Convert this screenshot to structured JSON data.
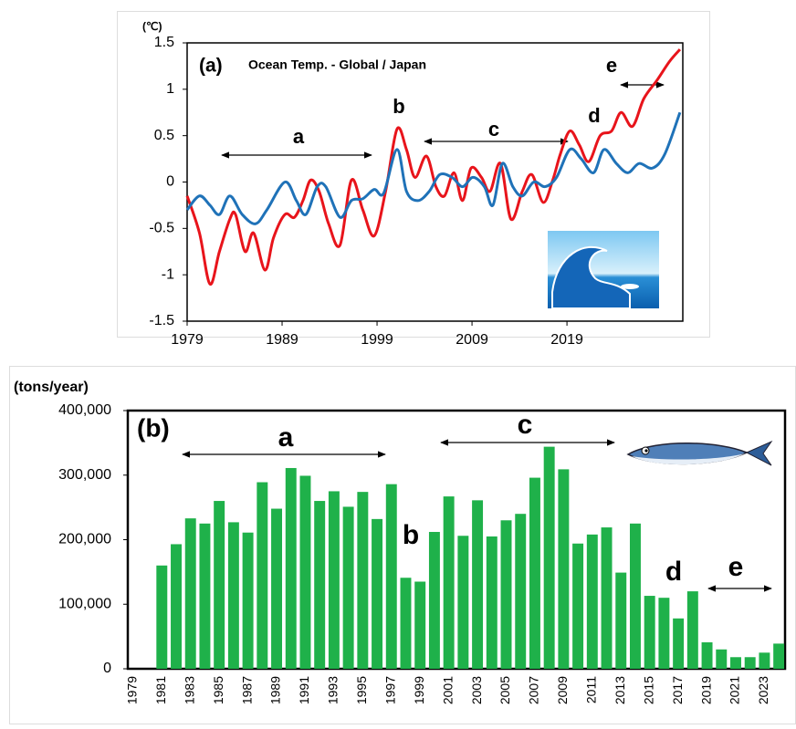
{
  "chart_data": [
    {
      "type": "line",
      "label": "(a)",
      "title": "Ocean Temp. - Global / Japan",
      "ylabel": "(℃)",
      "xlim": [
        1979,
        2031.2
      ],
      "xticks": [
        1979,
        1989,
        1999,
        2009,
        2019
      ],
      "ylim": [
        -1.5,
        1.5
      ],
      "yticks": [
        1.5,
        1,
        0.5,
        0,
        -0.5,
        -1,
        -1.5
      ],
      "annotations": [
        "a",
        "b",
        "c",
        "d",
        "e"
      ],
      "series": [
        {
          "color": "#e8141b",
          "x": [
            1979.0,
            1980.3,
            1981.4,
            1982.4,
            1983.5,
            1984.1,
            1985.1,
            1986.0,
            1987.2,
            1988.1,
            1989.3,
            1990.3,
            1991.2,
            1992.0,
            1992.9,
            1993.9,
            1995.1,
            1996.3,
            1997.5,
            1998.7,
            1999.9,
            2001.1,
            2002.1,
            2003.0,
            2004.2,
            2005.2,
            2006.1,
            2007.1,
            2008.0,
            2008.9,
            2010.0,
            2010.9,
            2012.0,
            2013.1,
            2014.3,
            2015.3,
            2016.5,
            2017.5,
            2018.3,
            2019.3,
            2020.3,
            2021.3,
            2022.5,
            2023.7,
            2024.7,
            2025.9,
            2027.1,
            2028.5,
            2029.8,
            2030.9
          ],
          "values": [
            -0.15,
            -0.55,
            -1.1,
            -0.75,
            -0.4,
            -0.35,
            -0.75,
            -0.55,
            -0.95,
            -0.6,
            -0.35,
            -0.38,
            -0.2,
            0.02,
            -0.1,
            -0.45,
            -0.68,
            0.02,
            -0.3,
            -0.58,
            -0.1,
            0.57,
            0.35,
            0.05,
            0.28,
            -0.05,
            -0.15,
            0.1,
            -0.2,
            0.15,
            0.05,
            -0.1,
            0.2,
            -0.4,
            -0.1,
            0.08,
            -0.22,
            0.02,
            0.3,
            0.55,
            0.4,
            0.22,
            0.5,
            0.55,
            0.75,
            0.6,
            0.9,
            1.1,
            1.3,
            1.43
          ]
        },
        {
          "color": "#1f72b8",
          "x": [
            1979.0,
            1980.3,
            1981.4,
            1982.4,
            1983.5,
            1984.8,
            1986.2,
            1987.4,
            1989.3,
            1990.5,
            1991.5,
            1992.7,
            1993.6,
            1995.1,
            1996.3,
            1997.5,
            1998.7,
            1999.7,
            2001.1,
            2002.1,
            2003.3,
            2004.5,
            2005.6,
            2006.9,
            2008.0,
            2009.1,
            2010.3,
            2011.2,
            2012.2,
            2013.3,
            2014.3,
            2015.5,
            2016.7,
            2017.9,
            2019.3,
            2020.5,
            2021.8,
            2022.9,
            2024.2,
            2025.4,
            2026.6,
            2028.0,
            2029.3,
            2030.9
          ],
          "values": [
            -0.3,
            -0.15,
            -0.25,
            -0.35,
            -0.15,
            -0.35,
            -0.45,
            -0.3,
            0,
            -0.2,
            -0.35,
            -0.05,
            -0.05,
            -0.38,
            -0.2,
            -0.18,
            -0.08,
            -0.12,
            0.35,
            -0.1,
            -0.2,
            -0.1,
            0.08,
            0.05,
            -0.05,
            0.05,
            -0.05,
            -0.25,
            0.2,
            -0.05,
            -0.15,
            0,
            -0.05,
            0.05,
            0.35,
            0.25,
            0.1,
            0.35,
            0.2,
            0.1,
            0.2,
            0.15,
            0.3,
            0.75
          ]
        }
      ]
    },
    {
      "type": "bar",
      "label": "(b)",
      "ylabel": "(tons/year)",
      "color": "#1fb14a",
      "categories": [
        "1979",
        null,
        "1981",
        null,
        "1983",
        null,
        "1985",
        null,
        "1987",
        null,
        "1989",
        null,
        "1991",
        null,
        "1993",
        null,
        "1995",
        null,
        "1997",
        null,
        "1999",
        null,
        "2001",
        null,
        "2003",
        null,
        "2005",
        null,
        "2007",
        null,
        "2009",
        null,
        "2011",
        null,
        "2013",
        null,
        "2015",
        null,
        "2017",
        null,
        "2019",
        null,
        "2021",
        null,
        "2023",
        null
      ],
      "values": [
        0,
        0,
        160000,
        193000,
        233000,
        225000,
        260000,
        227000,
        211000,
        289000,
        248000,
        311000,
        299000,
        260000,
        275000,
        251000,
        274000,
        232000,
        286000,
        141000,
        135000,
        212000,
        267000,
        206000,
        261000,
        205000,
        230000,
        240000,
        296000,
        344000,
        309000,
        194000,
        208000,
        219000,
        149000,
        225000,
        113000,
        110000,
        78000,
        120000,
        41000,
        30000,
        18000,
        18000,
        25000,
        39000
      ],
      "ylim": [
        0,
        400000
      ],
      "yticks": [
        {
          "value": 0,
          "label": "0"
        },
        {
          "value": 100000,
          "label": "100,000"
        },
        {
          "value": 200000,
          "label": "200,000"
        },
        {
          "value": 300000,
          "label": "300,000"
        },
        {
          "value": 400000,
          "label": "400,000"
        }
      ],
      "annotations": [
        "a",
        "c",
        "b",
        "d",
        "e"
      ]
    }
  ]
}
